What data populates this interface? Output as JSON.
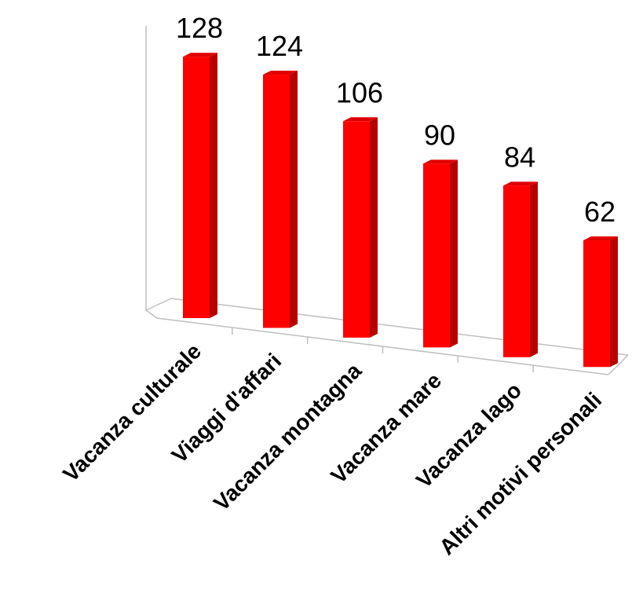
{
  "chart_data": {
    "type": "bar",
    "categories": [
      "Vacanza culturale",
      "Viaggi d'affari",
      "Vacanza montagna",
      "Vacanza mare",
      "Vacanza lago",
      "Altri motivi personali"
    ],
    "values": [
      128,
      124,
      106,
      90,
      84,
      62
    ],
    "data_labels": [
      "128",
      "124",
      "106",
      "90",
      "84",
      "62"
    ],
    "title": "",
    "xlabel": "",
    "ylabel": "",
    "ylim": [
      0,
      140
    ],
    "grid": false,
    "legend": "none",
    "style": "3d-column",
    "colors": {
      "bar_front": "#ff0000",
      "bar_side": "#b80000",
      "bar_top": "#e00000",
      "axis": "#bfbfbf"
    }
  }
}
